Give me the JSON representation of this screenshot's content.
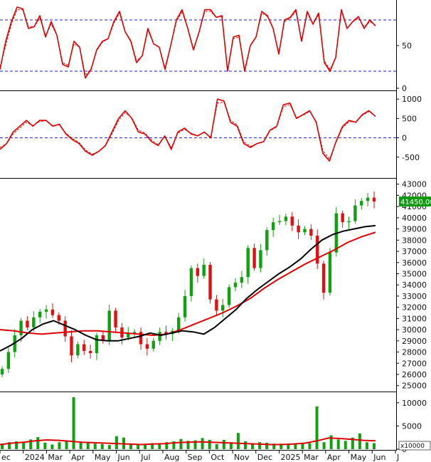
{
  "chart_data": {
    "type": "stock-chart",
    "x_axis": {
      "labels": [
        "ec",
        "2024",
        "Mar",
        "Apr",
        "May",
        "Jun",
        "Jul",
        "Aug",
        "Sep",
        "Oct",
        "Nov",
        "Dec",
        "2025",
        "Mar",
        "Apr",
        "May",
        "Jun",
        "J"
      ]
    },
    "panels": [
      {
        "name": "oscillator",
        "type": "line",
        "y_ticks": [
          0,
          50
        ],
        "ylim": [
          0,
          100
        ],
        "reference_lines": [
          80,
          20
        ],
        "series": [
          {
            "style": "solid",
            "color": "#e00000",
            "values": [
              22,
              55,
              78,
              95,
              93,
              70,
              72,
              85,
              60,
              78,
              62,
              28,
              25,
              55,
              48,
              12,
              22,
              45,
              55,
              58,
              78,
              90,
              66,
              55,
              30,
              38,
              70,
              52,
              48,
              22,
              50,
              80,
              92,
              70,
              45,
              66,
              92,
              92,
              83,
              85,
              20,
              60,
              62,
              20,
              50,
              60,
              90,
              85,
              70,
              40,
              80,
              83,
              92,
              55,
              90,
              75,
              88,
              30,
              20,
              36,
              92,
              70,
              78,
              84,
              70,
              80,
              73
            ]
          },
          {
            "style": "dashed",
            "color": "#e00000",
            "values": [
              25,
              50,
              75,
              92,
              92,
              72,
              72,
              82,
              62,
              75,
              62,
              30,
              27,
              52,
              48,
              15,
              23,
              44,
              54,
              58,
              76,
              88,
              66,
              56,
              32,
              38,
              68,
              52,
              48,
              24,
              50,
              78,
              90,
              70,
              46,
              66,
              90,
              90,
              83,
              84,
              22,
              58,
              60,
              22,
              50,
              60,
              88,
              84,
              70,
              42,
              78,
              82,
              90,
              57,
              88,
              75,
              86,
              32,
              22,
              36,
              90,
              70,
              78,
              82,
              72,
              78,
              74
            ]
          }
        ]
      },
      {
        "name": "momentum",
        "type": "line",
        "y_ticks": [
          1000,
          500,
          0,
          -500
        ],
        "ylim": [
          -1000,
          1150
        ],
        "reference_lines": [
          0
        ],
        "series": [
          {
            "style": "solid",
            "color": "#e00000",
            "values": [
              -300,
              -150,
              150,
              300,
              450,
              300,
              450,
              450,
              300,
              350,
              100,
              -50,
              -150,
              -350,
              -450,
              -350,
              -200,
              150,
              500,
              700,
              500,
              150,
              100,
              -100,
              -200,
              50,
              -300,
              150,
              250,
              100,
              50,
              150,
              0,
              1000,
              950,
              400,
              300,
              -150,
              -250,
              -150,
              -100,
              200,
              300,
              850,
              900,
              500,
              600,
              700,
              400,
              -400,
              -600,
              -100,
              300,
              450,
              400,
              600,
              700,
              550
            ]
          },
          {
            "style": "dashed",
            "color": "#e00000",
            "values": [
              -250,
              -150,
              100,
              250,
              400,
              320,
              420,
              440,
              320,
              330,
              120,
              -20,
              -120,
              -320,
              -420,
              -350,
              -210,
              100,
              450,
              650,
              520,
              200,
              120,
              -60,
              -180,
              40,
              -250,
              120,
              220,
              120,
              60,
              140,
              20,
              900,
              920,
              450,
              330,
              -100,
              -220,
              -150,
              -110,
              180,
              280,
              800,
              860,
              520,
              580,
              680,
              420,
              -330,
              -550,
              -120,
              260,
              420,
              410,
              580,
              680,
              560
            ]
          }
        ]
      },
      {
        "name": "price",
        "type": "candlestick",
        "y_ticks": [
          25000,
          26000,
          27000,
          28000,
          29000,
          30000,
          31000,
          32000,
          33000,
          34000,
          35000,
          36000,
          37000,
          38000,
          39000,
          40000,
          41000,
          42000,
          43000
        ],
        "ylim": [
          24600,
          43300
        ],
        "last_price_label": "41450.00",
        "close": [
          26500,
          28000,
          29500,
          30800,
          30200,
          31100,
          31600,
          31800,
          31300,
          30800,
          29400,
          27700,
          28700,
          28100,
          27900,
          29500,
          29000,
          31700,
          30200,
          29300,
          29700,
          29800,
          28700,
          28300,
          29000,
          29800,
          29600,
          29900,
          31100,
          33000,
          35500,
          34800,
          35800,
          32700,
          31700,
          32200,
          33800,
          34200,
          34700,
          37300,
          35500,
          37100,
          38900,
          39600,
          39700,
          40100,
          39300,
          38700,
          39000,
          38400,
          35900,
          33300,
          36900,
          40400,
          39600,
          39700,
          41100,
          41500,
          41800,
          41450
        ],
        "ma_black": [
          28100,
          28600,
          29200,
          30000,
          30500,
          30800,
          30400,
          30000,
          29500,
          29100,
          29000,
          29000,
          29200,
          29400,
          29700,
          29500,
          29700,
          29900,
          29800,
          29600,
          30200,
          31000,
          31800,
          32800,
          33600,
          34300,
          35000,
          35600,
          36300,
          37200,
          38000,
          38500,
          38800,
          39000,
          39200,
          39300
        ],
        "ma_red": [
          30000,
          29900,
          29700,
          29600,
          29700,
          29800,
          29900,
          29900,
          29800,
          29700,
          29600,
          29500,
          29600,
          30000,
          30500,
          31000,
          31500,
          32100,
          32800,
          33700,
          34500,
          35200,
          35900,
          36500,
          37100,
          37800,
          38300,
          38700
        ]
      },
      {
        "name": "volume",
        "type": "bar",
        "y_ticks": [
          0,
          5000,
          10000
        ],
        "ylim": [
          0,
          11500
        ],
        "unit_label": "x10000",
        "values": [
          1200,
          1500,
          1700,
          1400,
          2100,
          2600,
          1400,
          1000,
          1500,
          1900,
          11200,
          1600,
          1500,
          1200,
          1100,
          900,
          2800,
          2500,
          1200,
          900,
          1100,
          1300,
          1000,
          1500,
          1700,
          2200,
          1800,
          1900,
          2400,
          2000,
          1100,
          2000,
          1500,
          3500,
          1700,
          1300,
          1500,
          1400,
          1200,
          1200,
          900,
          1100,
          1300,
          1300,
          9200,
          1500,
          3000,
          2100,
          1800,
          2500,
          3400,
          1500,
          1300
        ],
        "ma_values": [
          1000,
          1300,
          1500,
          1800,
          2000,
          1900,
          1700,
          1500,
          1400,
          1300,
          1200,
          1100,
          1000,
          1100,
          1200,
          1400,
          1500,
          1600,
          1500,
          1400,
          1300,
          1200,
          1100,
          1000,
          1000,
          1100,
          1300,
          1800,
          2400,
          2300,
          2100,
          1900,
          1800
        ]
      }
    ],
    "grid": false
  }
}
